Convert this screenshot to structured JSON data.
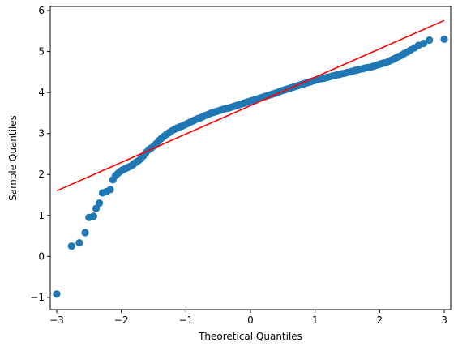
{
  "chart_data": {
    "type": "scatter",
    "title": "",
    "xlabel": "Theoretical Quantiles",
    "ylabel": "Sample Quantiles",
    "xlim": [
      -3.1,
      3.1
    ],
    "ylim": [
      -1.3,
      6.1
    ],
    "x_ticks": [
      -3,
      -2,
      -1,
      0,
      1,
      2,
      3
    ],
    "y_ticks": [
      -1,
      0,
      1,
      2,
      3,
      4,
      5,
      6
    ],
    "grid": false,
    "legend": "none",
    "colors": {
      "points": "#1f77b4",
      "reference_line": "#ff0000"
    },
    "reference_line": {
      "x": [
        -3.0,
        3.0
      ],
      "y": [
        1.6,
        5.76
      ]
    },
    "points": {
      "x": [
        -3.0,
        -2.77,
        -2.65,
        -2.56,
        -2.5,
        -2.43,
        -2.39,
        -2.34,
        -2.29,
        -2.23,
        -2.17,
        -2.13,
        -2.09,
        -2.05,
        -2.01,
        -1.98,
        -1.94,
        -1.9,
        -1.86,
        -1.82,
        -1.78,
        -1.74,
        -1.7,
        -1.66,
        -1.62,
        -1.58,
        -1.54,
        -1.5,
        -1.46,
        -1.42,
        -1.38,
        -1.34,
        -1.3,
        -1.26,
        -1.22,
        -1.18,
        -1.14,
        -1.1,
        -1.06,
        -1.02,
        -0.98,
        -0.94,
        -0.9,
        -0.86,
        -0.82,
        -0.78,
        -0.74,
        -0.7,
        -0.66,
        -0.62,
        -0.58,
        -0.54,
        -0.5,
        -0.46,
        -0.42,
        -0.38,
        -0.34,
        -0.3,
        -0.26,
        -0.22,
        -0.18,
        -0.14,
        -0.1,
        -0.06,
        -0.02,
        0.02,
        0.06,
        0.1,
        0.14,
        0.18,
        0.22,
        0.26,
        0.3,
        0.34,
        0.38,
        0.42,
        0.46,
        0.5,
        0.54,
        0.58,
        0.62,
        0.66,
        0.7,
        0.74,
        0.78,
        0.82,
        0.86,
        0.9,
        0.94,
        0.98,
        1.02,
        1.06,
        1.1,
        1.14,
        1.18,
        1.22,
        1.26,
        1.3,
        1.34,
        1.38,
        1.42,
        1.46,
        1.5,
        1.54,
        1.58,
        1.62,
        1.66,
        1.7,
        1.74,
        1.78,
        1.82,
        1.86,
        1.9,
        1.94,
        1.98,
        2.02,
        2.06,
        2.1,
        2.14,
        2.18,
        2.22,
        2.26,
        2.3,
        2.34,
        2.38,
        2.43,
        2.48,
        2.54,
        2.6,
        2.68,
        2.77,
        3.0
      ],
      "y": [
        -0.92,
        0.25,
        0.33,
        0.58,
        0.95,
        0.98,
        1.17,
        1.3,
        1.55,
        1.58,
        1.63,
        1.87,
        1.97,
        2.03,
        2.08,
        2.11,
        2.14,
        2.17,
        2.2,
        2.24,
        2.29,
        2.33,
        2.38,
        2.45,
        2.53,
        2.6,
        2.64,
        2.69,
        2.75,
        2.82,
        2.88,
        2.93,
        2.98,
        3.02,
        3.06,
        3.1,
        3.13,
        3.16,
        3.18,
        3.21,
        3.24,
        3.27,
        3.3,
        3.33,
        3.36,
        3.38,
        3.41,
        3.44,
        3.46,
        3.49,
        3.51,
        3.53,
        3.55,
        3.57,
        3.59,
        3.61,
        3.62,
        3.64,
        3.66,
        3.68,
        3.7,
        3.72,
        3.74,
        3.76,
        3.78,
        3.8,
        3.82,
        3.84,
        3.86,
        3.88,
        3.9,
        3.92,
        3.94,
        3.96,
        3.98,
        4.0,
        4.03,
        4.05,
        4.07,
        4.09,
        4.11,
        4.13,
        4.15,
        4.17,
        4.19,
        4.21,
        4.23,
        4.25,
        4.27,
        4.29,
        4.31,
        4.33,
        4.34,
        4.35,
        4.37,
        4.38,
        4.4,
        4.41,
        4.43,
        4.44,
        4.46,
        4.47,
        4.49,
        4.5,
        4.52,
        4.54,
        4.55,
        4.57,
        4.58,
        4.6,
        4.61,
        4.62,
        4.64,
        4.66,
        4.68,
        4.7,
        4.72,
        4.73,
        4.76,
        4.79,
        4.82,
        4.85,
        4.88,
        4.91,
        4.95,
        4.99,
        5.04,
        5.09,
        5.15,
        5.2,
        5.28,
        5.3
      ]
    }
  }
}
